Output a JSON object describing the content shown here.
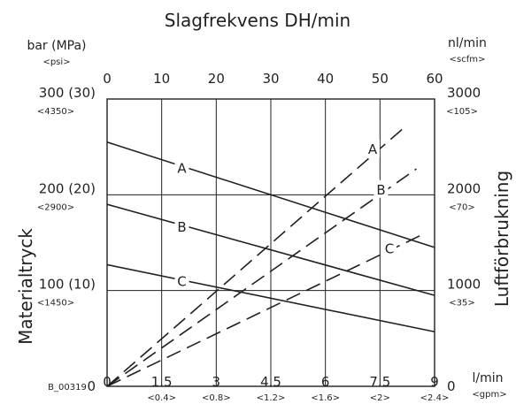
{
  "chart_data": {
    "type": "line",
    "title": "Slagfrekvens DH/min",
    "top_axis": {
      "ticks": [
        "0",
        "10",
        "20",
        "30",
        "40",
        "50",
        "60"
      ]
    },
    "left_axis": {
      "label": "Materialtryck",
      "unit": "bar (MPa)",
      "unit_alt": "<psi>",
      "ticks": [
        {
          "value": 0,
          "label": "0",
          "sub": ""
        },
        {
          "value": 100,
          "label": "100 (10)",
          "sub": "<1450>"
        },
        {
          "value": 200,
          "label": "200 (20)",
          "sub": "<2900>"
        },
        {
          "value": 300,
          "label": "300 (30)",
          "sub": "<4350>"
        }
      ]
    },
    "right_axis": {
      "label": "Luftförbrukning",
      "unit": "nl/min",
      "unit_alt": "<scfm>",
      "ticks": [
        {
          "value": 0,
          "label": "0",
          "sub": ""
        },
        {
          "value": 1000,
          "label": "1000",
          "sub": "<35>"
        },
        {
          "value": 2000,
          "label": "2000",
          "sub": "<70>"
        },
        {
          "value": 3000,
          "label": "3000",
          "sub": "<105>"
        }
      ]
    },
    "bottom_axis": {
      "unit": "l/min",
      "unit_alt": "<gpm>",
      "ticks": [
        {
          "value": 0,
          "label": "0",
          "sub": ""
        },
        {
          "value": 1.5,
          "label": "1.5",
          "sub": "<0.4>"
        },
        {
          "value": 3,
          "label": "3",
          "sub": "<0.8>"
        },
        {
          "value": 4.5,
          "label": "4.5",
          "sub": "<1.2>"
        },
        {
          "value": 6,
          "label": "6",
          "sub": "<1.6>"
        },
        {
          "value": 7.5,
          "label": "7.5",
          "sub": "<2>"
        },
        {
          "value": 9,
          "label": "9",
          "sub": "<2.4>"
        }
      ]
    },
    "xlim": [
      0,
      9
    ],
    "y_left_lim": [
      0,
      300
    ],
    "y_right_lim": [
      0,
      3000
    ],
    "grid": true,
    "figure_id": "B_00319",
    "series": [
      {
        "name": "A",
        "style": "solid",
        "axis": "left",
        "x": [
          0,
          9
        ],
        "y": [
          255,
          145
        ]
      },
      {
        "name": "B",
        "style": "solid",
        "axis": "left",
        "x": [
          0,
          9
        ],
        "y": [
          190,
          95
        ]
      },
      {
        "name": "C",
        "style": "solid",
        "axis": "left",
        "x": [
          0,
          9
        ],
        "y": [
          127,
          57
        ]
      },
      {
        "name": "A",
        "style": "dashed",
        "axis": "right",
        "x": [
          0,
          8.25
        ],
        "y": [
          0,
          2730
        ]
      },
      {
        "name": "B",
        "style": "dashed",
        "axis": "right",
        "x": [
          0,
          8.5
        ],
        "y": [
          0,
          2270
        ]
      },
      {
        "name": "C",
        "style": "dashed",
        "axis": "right",
        "x": [
          0,
          8.75
        ],
        "y": [
          0,
          1600
        ]
      }
    ]
  }
}
